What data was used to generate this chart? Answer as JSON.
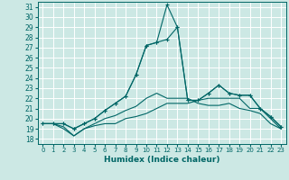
{
  "xlabel": "Humidex (Indice chaleur)",
  "bg_color": "#cce8e4",
  "grid_color": "#ffffff",
  "line_color": "#006666",
  "xlim": [
    -0.5,
    23.5
  ],
  "ylim": [
    17.5,
    31.5
  ],
  "yticks": [
    18,
    19,
    20,
    21,
    22,
    23,
    24,
    25,
    26,
    27,
    28,
    29,
    30,
    31
  ],
  "xticks": [
    0,
    1,
    2,
    3,
    4,
    5,
    6,
    7,
    8,
    9,
    10,
    11,
    12,
    13,
    14,
    15,
    16,
    17,
    18,
    19,
    20,
    21,
    22,
    23
  ],
  "line1_y": [
    19.5,
    19.5,
    19.0,
    18.3,
    19.0,
    19.3,
    19.5,
    19.5,
    20.0,
    20.2,
    20.5,
    21.0,
    21.5,
    21.5,
    21.5,
    21.8,
    22.0,
    22.0,
    22.0,
    22.0,
    21.0,
    21.0,
    20.0,
    19.0
  ],
  "line2_y": [
    19.5,
    19.5,
    19.2,
    18.3,
    19.0,
    19.5,
    20.0,
    20.3,
    20.8,
    21.2,
    22.0,
    22.5,
    22.0,
    22.0,
    22.0,
    21.5,
    21.3,
    21.3,
    21.5,
    21.0,
    20.8,
    20.5,
    19.5,
    19.0
  ],
  "line3_y": [
    19.5,
    19.5,
    19.5,
    19.0,
    19.5,
    20.0,
    20.8,
    21.5,
    22.2,
    24.3,
    27.2,
    27.5,
    27.8,
    29.0,
    21.8,
    21.8,
    22.5,
    23.3,
    22.5,
    22.3,
    22.3,
    21.0,
    20.2,
    19.2
  ],
  "line4_y": [
    19.5,
    19.5,
    19.5,
    19.0,
    19.5,
    20.0,
    20.8,
    21.5,
    22.2,
    24.3,
    27.2,
    27.5,
    31.2,
    29.0,
    21.8,
    21.8,
    22.5,
    23.3,
    22.5,
    22.3,
    22.3,
    21.0,
    20.2,
    19.2
  ],
  "x": [
    0,
    1,
    2,
    3,
    4,
    5,
    6,
    7,
    8,
    9,
    10,
    11,
    12,
    13,
    14,
    15,
    16,
    17,
    18,
    19,
    20,
    21,
    22,
    23
  ]
}
